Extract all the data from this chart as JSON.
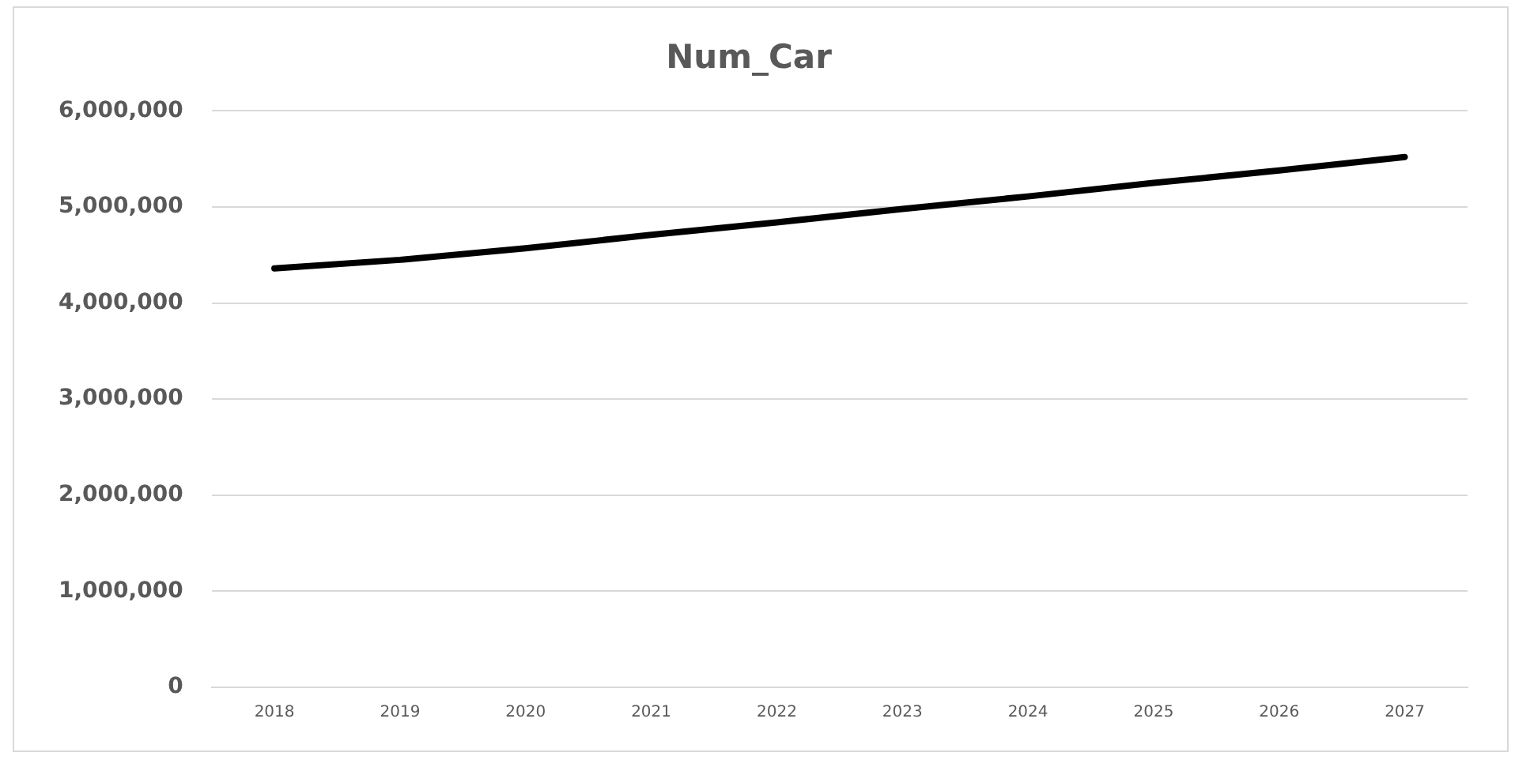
{
  "chart_data": {
    "type": "line",
    "title": "Num_Car",
    "categories": [
      "2018",
      "2019",
      "2020",
      "2021",
      "2022",
      "2023",
      "2024",
      "2025",
      "2026",
      "2027"
    ],
    "series": [
      {
        "color": "#000000",
        "values": [
          4360000,
          4450000,
          4570000,
          4710000,
          4840000,
          4980000,
          5110000,
          5250000,
          5380000,
          5520000
        ]
      }
    ],
    "ylim": [
      0,
      6000000
    ],
    "yticks": [
      0,
      {
        "value": 1000000,
        "label": "1,000,000"
      },
      {
        "value": 2000000,
        "label": "2,000,000"
      },
      {
        "value": 3000000,
        "label": "3,000,000"
      },
      {
        "value": 4000000,
        "label": "4,000,000"
      },
      {
        "value": 5000000,
        "label": "5,000,000"
      },
      {
        "value": 6000000,
        "label": "6,000,000"
      }
    ],
    "grid": "y",
    "legend": false,
    "marker": "none",
    "line_style": "solid"
  }
}
